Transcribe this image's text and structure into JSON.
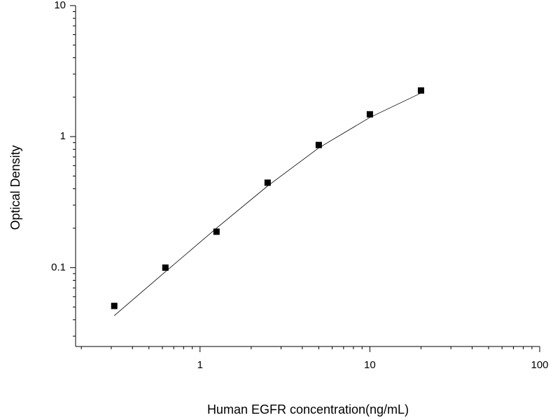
{
  "chart_data": {
    "type": "scatter",
    "x_label": "Human EGFR concentration(ng/mL)",
    "y_label": "Optical Density",
    "x": [
      0.3125,
      0.625,
      1.25,
      2.5,
      5,
      10,
      20
    ],
    "series": [
      {
        "color": "#000000",
        "style": "markers",
        "values": [
          0.051,
          0.1,
          0.188,
          0.445,
          0.863,
          1.48,
          2.25
        ]
      },
      {
        "color": "#000000",
        "style": "line",
        "values": [
          0.043,
          0.093,
          0.2,
          0.42,
          0.82,
          1.4,
          2.15
        ]
      }
    ],
    "xscale": "log",
    "yscale": "log",
    "xlim": [
      0.185,
      100
    ],
    "ylim": [
      0.025,
      10
    ],
    "xticks": [
      1,
      10,
      100
    ],
    "yticks": [
      0.1,
      1,
      10
    ],
    "xminorticks": [
      0.2,
      0.3,
      0.4,
      0.5,
      0.6,
      0.7,
      0.8,
      0.9,
      2,
      3,
      4,
      5,
      6,
      7,
      8,
      9,
      20,
      30,
      40,
      50,
      60,
      70,
      80,
      90
    ],
    "yminorticks": [
      0.03,
      0.04,
      0.05,
      0.06,
      0.07,
      0.08,
      0.09,
      0.2,
      0.3,
      0.4,
      0.5,
      0.6,
      0.7,
      0.8,
      0.9,
      2,
      3,
      4,
      5,
      6,
      7,
      8,
      9
    ]
  }
}
